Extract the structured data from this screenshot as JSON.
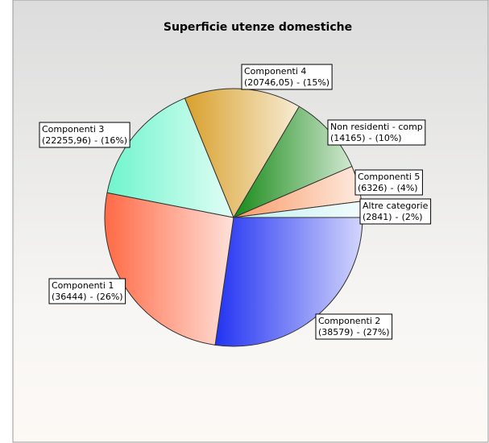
{
  "chart_data": {
    "type": "pie",
    "title": "Superficie utenze domestiche",
    "categories": [
      "Componenti 2",
      "Componenti 1",
      "Componenti 3",
      "Componenti 4",
      "Non residenti - comp",
      "Componenti 5",
      "Altre categorie"
    ],
    "values": [
      38579,
      36444,
      22255.96,
      20746.05,
      14165,
      6326,
      2841
    ],
    "value_labels": [
      "(38579)",
      "(36444)",
      "(22255,96)",
      "(20746,05)",
      "(14165)",
      "(6326)",
      "(2841)"
    ],
    "separator": "-",
    "percents": [
      27,
      26,
      16,
      15,
      10,
      4,
      2
    ],
    "percent_labels": [
      "(27%)",
      "(26%)",
      "(16%)",
      "(15%)",
      "(10%)",
      "(4%)",
      "(2%)"
    ],
    "colors": [
      "#2233f2",
      "#ff6a45",
      "#6ff5cc",
      "#d9a02c",
      "#178a17",
      "#f89a66",
      "#bfeeee"
    ]
  }
}
